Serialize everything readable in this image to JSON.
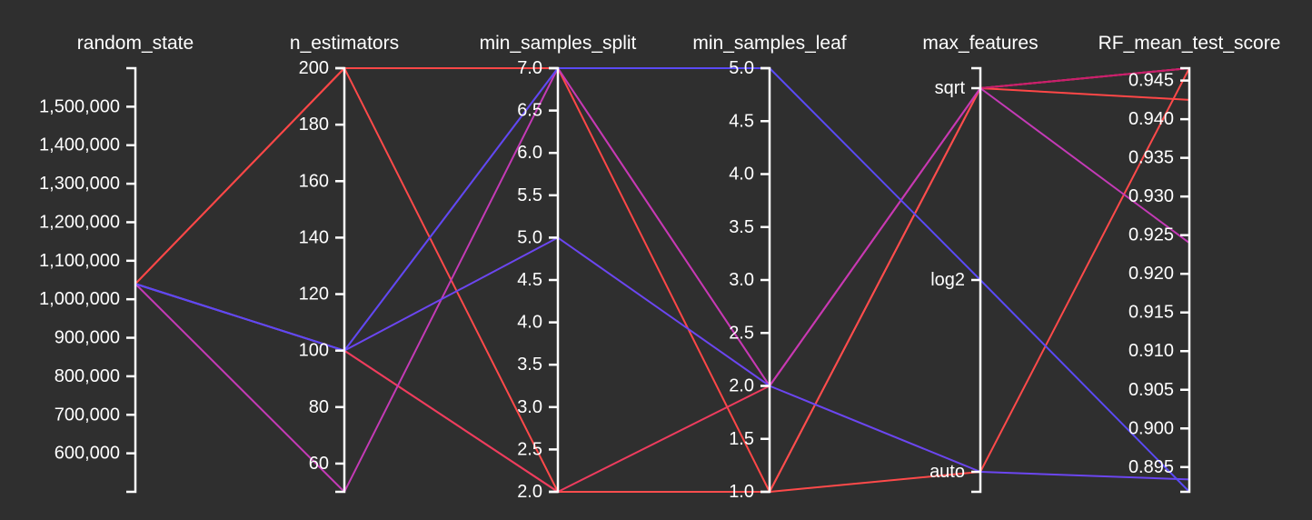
{
  "chart_data": {
    "type": "parallel_coordinates",
    "grid": false,
    "colors": {
      "background": "#2f2f2f",
      "axis": "#ffffff",
      "text": "#ffffff"
    },
    "axes": [
      {
        "name": "random_state",
        "kind": "numeric",
        "range": [
          500000,
          1600000
        ],
        "ticks": [
          600000,
          700000,
          800000,
          900000,
          1000000,
          1100000,
          1200000,
          1300000,
          1400000,
          1500000
        ],
        "tick_labels": [
          "600,000",
          "700,000",
          "800,000",
          "900,000",
          "1,000,000",
          "1,100,000",
          "1,200,000",
          "1,300,000",
          "1,400,000",
          "1,500,000"
        ]
      },
      {
        "name": "n_estimators",
        "kind": "numeric",
        "range": [
          50,
          200
        ],
        "ticks": [
          60,
          80,
          100,
          120,
          140,
          160,
          180,
          200
        ],
        "tick_labels": [
          "60",
          "80",
          "100",
          "120",
          "140",
          "160",
          "180",
          "200"
        ]
      },
      {
        "name": "min_samples_split",
        "kind": "numeric",
        "range": [
          2.0,
          7.0
        ],
        "ticks": [
          2.0,
          2.5,
          3.0,
          3.5,
          4.0,
          4.5,
          5.0,
          5.5,
          6.0,
          6.5,
          7.0
        ],
        "tick_labels": [
          "2.0",
          "2.5",
          "3.0",
          "3.5",
          "4.0",
          "4.5",
          "5.0",
          "5.5",
          "6.0",
          "6.5",
          "7.0"
        ]
      },
      {
        "name": "min_samples_leaf",
        "kind": "numeric",
        "range": [
          1.0,
          5.0
        ],
        "ticks": [
          1.0,
          1.5,
          2.0,
          2.5,
          3.0,
          3.5,
          4.0,
          4.5,
          5.0
        ],
        "tick_labels": [
          "1.0",
          "1.5",
          "2.0",
          "2.5",
          "3.0",
          "3.5",
          "4.0",
          "4.5",
          "5.0"
        ]
      },
      {
        "name": "max_features",
        "kind": "categorical",
        "categories": [
          "auto",
          "log2",
          "sqrt"
        ],
        "tick_labels": [
          "auto",
          "log2",
          "sqrt"
        ]
      },
      {
        "name": "RF_mean_test_score",
        "kind": "numeric",
        "range": [
          0.8918,
          0.9466
        ],
        "ticks": [
          0.895,
          0.9,
          0.905,
          0.91,
          0.915,
          0.92,
          0.925,
          0.93,
          0.935,
          0.94,
          0.945
        ],
        "tick_labels": [
          "0.895",
          "0.900",
          "0.905",
          "0.910",
          "0.915",
          "0.920",
          "0.925",
          "0.930",
          "0.935",
          "0.940",
          "0.945"
        ]
      }
    ],
    "series": [
      {
        "color": "#ff4a4a",
        "values": [
          1040000,
          200,
          2.0,
          1.0,
          "auto",
          0.9466
        ]
      },
      {
        "color": "#ff4747",
        "values": [
          1040000,
          200,
          7.0,
          1.0,
          "sqrt",
          0.9425
        ]
      },
      {
        "color": "#ff4d4d",
        "values": [
          1040000,
          100,
          2.0,
          1.0,
          "sqrt",
          0.9466
        ]
      },
      {
        "color": "#ee3c5e",
        "values": [
          1040000,
          100,
          2.0,
          2.0,
          "sqrt",
          0.9466
        ]
      },
      {
        "color": "#c81e6e",
        "values": [
          1040000,
          100,
          7.0,
          2.0,
          "sqrt",
          0.9466
        ]
      },
      {
        "color": "#c43ab6",
        "values": [
          1040000,
          50,
          7.0,
          2.0,
          "sqrt",
          0.924
        ]
      },
      {
        "color": "#6b46f0",
        "values": [
          1040000,
          100,
          5.0,
          2.0,
          "auto",
          0.8934
        ]
      },
      {
        "color": "#5a4af5",
        "values": [
          1040000,
          100,
          7.0,
          5.0,
          "log2",
          0.8918
        ]
      }
    ]
  }
}
